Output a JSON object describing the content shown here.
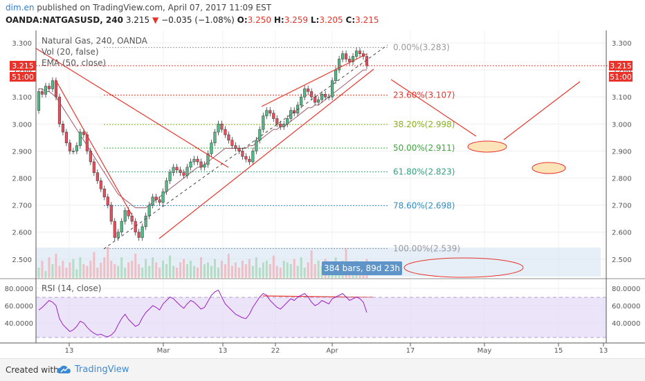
{
  "header": {
    "user": "dim.en",
    "published": " published on TradingView.com, April 07, 2017 11:09 EST",
    "symbol": "OANDA:NATGASUSD, 240",
    "price": "3.215",
    "change": "−0.035 (−1.08%)",
    "o_label": "O:",
    "o_val": "3.250",
    "h_label": "H:",
    "h_val": "3.259",
    "l_label": "L:",
    "l_val": "3.205",
    "c_label": "C:",
    "c_val": "3.215"
  },
  "legend": {
    "title": "Natural Gas, 240, OANDA",
    "vol": "Vol (20, false)",
    "ema": "EMA (50, close)",
    "rsi": "RSI (14, close)"
  },
  "badges": {
    "price": "3.215",
    "time": "51:00",
    "bars": "384 bars, 89d 23h"
  },
  "footer": {
    "created": "Created with",
    "brand": "TradingView"
  },
  "colors": {
    "candle_up": "#53b987",
    "candle_down": "#eb4d5c",
    "trendline": "#e8322a",
    "ema": "#a45a6a",
    "rsi": "#9b1fc8",
    "rsi_band": "#e4d9f7",
    "badge_price": "#e8322a",
    "range_box": "#d6e4f3"
  },
  "chart_data": {
    "type": "candlestick",
    "instrument": "Natural Gas, 240, OANDA",
    "last_price": 3.215,
    "ohlc_last": {
      "open": 3.25,
      "high": 3.259,
      "low": 3.205,
      "close": 3.215
    },
    "price_axis": {
      "ticks": [
        "3.300",
        "3.200",
        "3.100",
        "3.000",
        "2.900",
        "2.800",
        "2.700",
        "2.600",
        "2.500"
      ],
      "ylim": [
        2.47,
        3.325
      ]
    },
    "time_axis": {
      "ticks": [
        "13",
        "Mar",
        "13",
        "22",
        "Apr",
        "17",
        "May",
        "15",
        "13"
      ]
    },
    "candles": [
      [
        3.05,
        3.12
      ],
      [
        3.12,
        3.11
      ],
      [
        3.11,
        3.14
      ],
      [
        3.14,
        3.13
      ],
      [
        3.13,
        3.16
      ],
      [
        3.16,
        3.1
      ],
      [
        3.1,
        3.0
      ],
      [
        3.0,
        2.97
      ],
      [
        2.97,
        2.93
      ],
      [
        2.93,
        2.9
      ],
      [
        2.9,
        2.9
      ],
      [
        2.9,
        2.92
      ],
      [
        2.92,
        2.97
      ],
      [
        2.97,
        2.96
      ],
      [
        2.96,
        2.9
      ],
      [
        2.9,
        2.86
      ],
      [
        2.86,
        2.82
      ],
      [
        2.82,
        2.79
      ],
      [
        2.79,
        2.76
      ],
      [
        2.76,
        2.73
      ],
      [
        2.73,
        2.7
      ],
      [
        2.7,
        2.64
      ],
      [
        2.64,
        2.58
      ],
      [
        2.58,
        2.6
      ],
      [
        2.6,
        2.64
      ],
      [
        2.64,
        2.68
      ],
      [
        2.68,
        2.66
      ],
      [
        2.66,
        2.64
      ],
      [
        2.64,
        2.6
      ],
      [
        2.6,
        2.58
      ],
      [
        2.58,
        2.62
      ],
      [
        2.62,
        2.66
      ],
      [
        2.66,
        2.7
      ],
      [
        2.7,
        2.73
      ],
      [
        2.73,
        2.72
      ],
      [
        2.72,
        2.71
      ],
      [
        2.71,
        2.75
      ],
      [
        2.75,
        2.79
      ],
      [
        2.79,
        2.82
      ],
      [
        2.82,
        2.84
      ],
      [
        2.84,
        2.83
      ],
      [
        2.83,
        2.82
      ],
      [
        2.82,
        2.81
      ],
      [
        2.81,
        2.84
      ],
      [
        2.84,
        2.86
      ],
      [
        2.86,
        2.87
      ],
      [
        2.87,
        2.86
      ],
      [
        2.86,
        2.84
      ],
      [
        2.84,
        2.85
      ],
      [
        2.85,
        2.89
      ],
      [
        2.89,
        2.93
      ],
      [
        2.93,
        2.97
      ],
      [
        2.97,
        3.0
      ],
      [
        3.0,
        2.98
      ],
      [
        2.98,
        2.96
      ],
      [
        2.96,
        2.94
      ],
      [
        2.94,
        2.92
      ],
      [
        2.92,
        2.91
      ],
      [
        2.91,
        2.9
      ],
      [
        2.9,
        2.88
      ],
      [
        2.88,
        2.87
      ],
      [
        2.87,
        2.86
      ],
      [
        2.86,
        2.9
      ],
      [
        2.9,
        2.94
      ],
      [
        2.94,
        2.98
      ],
      [
        2.98,
        3.03
      ],
      [
        3.03,
        3.05
      ],
      [
        3.05,
        3.04
      ],
      [
        3.04,
        3.02
      ],
      [
        3.02,
        3.0
      ],
      [
        3.0,
        2.99
      ],
      [
        2.99,
        3.0
      ],
      [
        3.0,
        3.02
      ],
      [
        3.02,
        3.05
      ],
      [
        3.05,
        3.04
      ],
      [
        3.04,
        3.07
      ],
      [
        3.07,
        3.1
      ],
      [
        3.1,
        3.13
      ],
      [
        3.13,
        3.12
      ],
      [
        3.12,
        3.1
      ],
      [
        3.1,
        3.08
      ],
      [
        3.08,
        3.09
      ],
      [
        3.09,
        3.11
      ],
      [
        3.11,
        3.1
      ],
      [
        3.1,
        3.1
      ],
      [
        3.1,
        3.16
      ],
      [
        3.16,
        3.2
      ],
      [
        3.2,
        3.24
      ],
      [
        3.24,
        3.26
      ],
      [
        3.26,
        3.24
      ],
      [
        3.24,
        3.23
      ],
      [
        3.23,
        3.25
      ],
      [
        3.25,
        3.27
      ],
      [
        3.27,
        3.26
      ],
      [
        3.26,
        3.25
      ],
      [
        3.25,
        3.215
      ]
    ],
    "fibonacci": [
      {
        "label": "0.00%(3.283)",
        "price": 3.283,
        "color": "#999999"
      },
      {
        "label": "23.60%(3.107)",
        "price": 3.107,
        "color": "#e8322a"
      },
      {
        "label": "38.20%(2.998)",
        "price": 2.998,
        "color": "#8bb316"
      },
      {
        "label": "50.00%(2.911)",
        "price": 2.911,
        "color": "#3aa83a"
      },
      {
        "label": "61.80%(2.823)",
        "price": 2.823,
        "color": "#2ea37a"
      },
      {
        "label": "78.60%(2.698)",
        "price": 2.698,
        "color": "#2b8fc6"
      },
      {
        "label": "100.00%(2.539)",
        "price": 2.539,
        "color": "#999999"
      }
    ],
    "volume": [
      0.3,
      0.5,
      0.2,
      0.6,
      0.4,
      0.7,
      0.35,
      0.5,
      0.3,
      0.45,
      0.55,
      0.25,
      0.6,
      0.4,
      0.35,
      0.5,
      0.75,
      0.3,
      0.45,
      0.6,
      0.9,
      0.5,
      0.4,
      0.35,
      0.6,
      0.3,
      0.45,
      0.5,
      0.7,
      0.4,
      0.3,
      0.55,
      0.35,
      0.6,
      0.45,
      0.3,
      0.5,
      0.4,
      0.65,
      0.35,
      0.3,
      0.45,
      0.55,
      0.4,
      0.5,
      0.35,
      0.3,
      0.6,
      0.4,
      0.45,
      0.35,
      0.55,
      0.3,
      0.5,
      0.4,
      0.7,
      0.35,
      0.45,
      0.3,
      0.5,
      0.4,
      0.55,
      0.35,
      0.6,
      0.3,
      0.45,
      0.5,
      0.4,
      0.65,
      0.35,
      0.3,
      0.5,
      0.45,
      0.4,
      0.55,
      0.35,
      0.6,
      0.3,
      0.45,
      0.8,
      0.4,
      0.5,
      0.35,
      0.55,
      0.45,
      0.3,
      0.6,
      0.4,
      0.5,
      0.85,
      0.35,
      0.45,
      0.5,
      0.4,
      0.3,
      0.55
    ],
    "ema50": [
      3.13,
      3.13,
      3.12,
      3.12,
      3.11,
      3.1,
      3.08,
      3.06,
      3.04,
      3.02,
      3.0,
      2.98,
      2.96,
      2.94,
      2.92,
      2.9,
      2.88,
      2.86,
      2.84,
      2.82,
      2.8,
      2.78,
      2.76,
      2.74,
      2.73,
      2.72,
      2.71,
      2.7,
      2.69,
      2.69,
      2.69,
      2.69,
      2.7,
      2.71,
      2.72,
      2.73,
      2.74,
      2.75,
      2.76,
      2.77,
      2.78,
      2.79,
      2.8,
      2.81,
      2.82,
      2.83,
      2.84,
      2.84,
      2.85,
      2.86,
      2.87,
      2.88,
      2.89,
      2.9,
      2.91,
      2.91,
      2.91,
      2.91,
      2.91,
      2.91,
      2.91,
      2.92,
      2.92,
      2.93,
      2.94,
      2.95,
      2.96,
      2.97,
      2.98,
      2.98,
      2.99,
      2.99,
      3.0,
      3.01,
      3.02,
      3.03,
      3.04,
      3.05,
      3.06,
      3.06,
      3.07,
      3.07,
      3.08,
      3.09,
      3.1,
      3.11,
      3.12,
      3.13,
      3.14,
      3.15,
      3.16,
      3.17,
      3.18,
      3.19,
      3.2,
      3.2
    ],
    "rsi": {
      "ticks": [
        "80.0000",
        "60.0000",
        "40.0000"
      ],
      "ylim": [
        20,
        85
      ],
      "bands": [
        70,
        30
      ],
      "values": [
        55,
        58,
        62,
        66,
        64,
        60,
        45,
        38,
        34,
        30,
        32,
        36,
        42,
        40,
        35,
        31,
        28,
        26,
        27,
        25,
        24,
        26,
        30,
        38,
        45,
        50,
        44,
        40,
        36,
        38,
        46,
        52,
        56,
        60,
        58,
        55,
        62,
        66,
        70,
        68,
        64,
        60,
        57,
        62,
        66,
        64,
        60,
        56,
        58,
        65,
        72,
        76,
        78,
        70,
        62,
        58,
        54,
        50,
        48,
        46,
        45,
        50,
        58,
        64,
        70,
        74,
        72,
        66,
        62,
        58,
        56,
        60,
        64,
        68,
        66,
        70,
        72,
        74,
        70,
        64,
        60,
        62,
        66,
        64,
        62,
        68,
        70,
        72,
        74,
        70,
        66,
        68,
        70,
        68,
        64,
        52
      ]
    }
  }
}
